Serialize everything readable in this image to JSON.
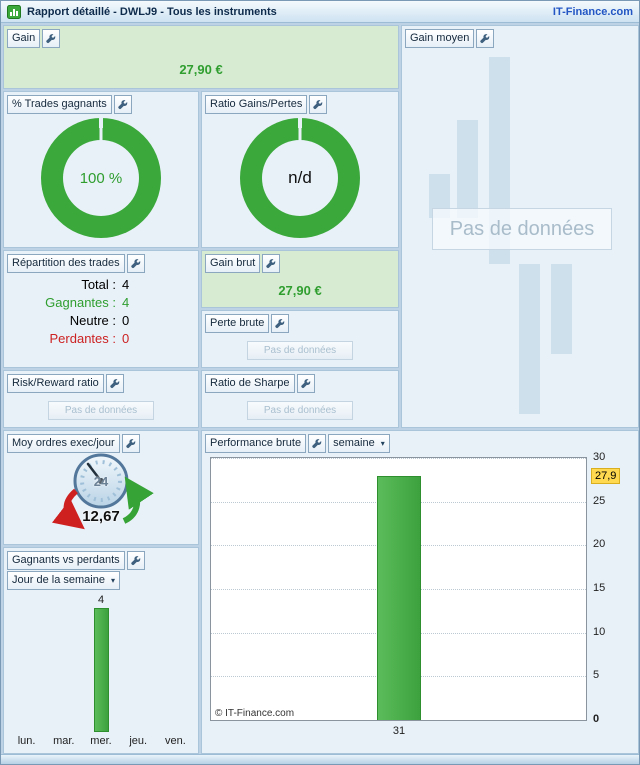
{
  "header": {
    "title": "Rapport détaillé - DWLJ9 - Tous les instruments",
    "brand": "IT-Finance.com"
  },
  "colors": {
    "accent_green": "#3aa83a",
    "value_green": "#2f9e2f",
    "loss_red": "#cc2222",
    "highlight_yellow": "#ffd94f",
    "watermark_blue": "#cfe0ed"
  },
  "panels": {
    "gain": {
      "title": "Gain",
      "value": "27,90 €"
    },
    "gain_moyen": {
      "title": "Gain moyen",
      "no_data": "Pas de données"
    },
    "pct_trades_gagnants": {
      "title": "% Trades gagnants",
      "value": "100 %"
    },
    "ratio_gains_pertes": {
      "title": "Ratio Gains/Pertes",
      "value": "n/d"
    },
    "repartition_des_trades": {
      "title": "Répartition des trades",
      "rows": [
        {
          "label": "Total",
          "value": "4",
          "color": "#000000"
        },
        {
          "label": "Gagnantes",
          "value": "4",
          "color": "#2f9e2f"
        },
        {
          "label": "Neutre",
          "value": "0",
          "color": "#000000"
        },
        {
          "label": "Perdantes",
          "value": "0",
          "color": "#cc2222"
        }
      ]
    },
    "gain_brut": {
      "title": "Gain brut",
      "value": "27,90 €"
    },
    "perte_brute": {
      "title": "Perte brute",
      "no_data": "Pas de données"
    },
    "risk_reward": {
      "title": "Risk/Reward ratio",
      "no_data": "Pas de données"
    },
    "ratio_sharpe": {
      "title": "Ratio de Sharpe",
      "no_data": "Pas de données"
    },
    "moy_ordres": {
      "title": "Moy ordres exec/jour",
      "value": "12,67",
      "gauge_label": "24"
    },
    "performance_brute": {
      "title": "Performance brute",
      "period_dropdown": "semaine",
      "copyright": "© IT-Finance.com"
    },
    "gagnants_vs_perdants": {
      "title": "Gagnants vs perdants",
      "group_dropdown": "Jour de la semaine"
    }
  },
  "chart_data": [
    {
      "name": "pct_trades_gagnants",
      "type": "pie",
      "title": "% Trades gagnants",
      "slices": [
        {
          "label": "gagnants",
          "value": 100
        }
      ],
      "center_text": "100 %",
      "color": "#3aa83a"
    },
    {
      "name": "ratio_gains_pertes",
      "type": "pie",
      "title": "Ratio Gains/Pertes",
      "slices": [
        {
          "label": "gains",
          "value": 100
        }
      ],
      "center_text": "n/d",
      "color": "#3aa83a"
    },
    {
      "name": "performance_brute",
      "type": "bar",
      "title": "Performance brute (semaine)",
      "categories": [
        "31"
      ],
      "values": [
        27.9
      ],
      "ylim": [
        0,
        30
      ],
      "yticks": [
        0,
        5,
        10,
        15,
        20,
        25,
        30
      ],
      "highlight_value_label": "27,9",
      "bar_color": "#3da23d",
      "axis_side": "right",
      "grid": true
    },
    {
      "name": "gagnants_vs_perdants",
      "type": "bar",
      "title": "Gagnants vs perdants (Jour de la semaine)",
      "categories": [
        "lun.",
        "mar.",
        "mer.",
        "jeu.",
        "ven."
      ],
      "values": [
        0,
        0,
        4,
        0,
        0
      ],
      "value_labels": [
        "",
        "",
        "4",
        "",
        ""
      ],
      "ylim": [
        0,
        4
      ],
      "bar_color": "#3da23d"
    }
  ]
}
